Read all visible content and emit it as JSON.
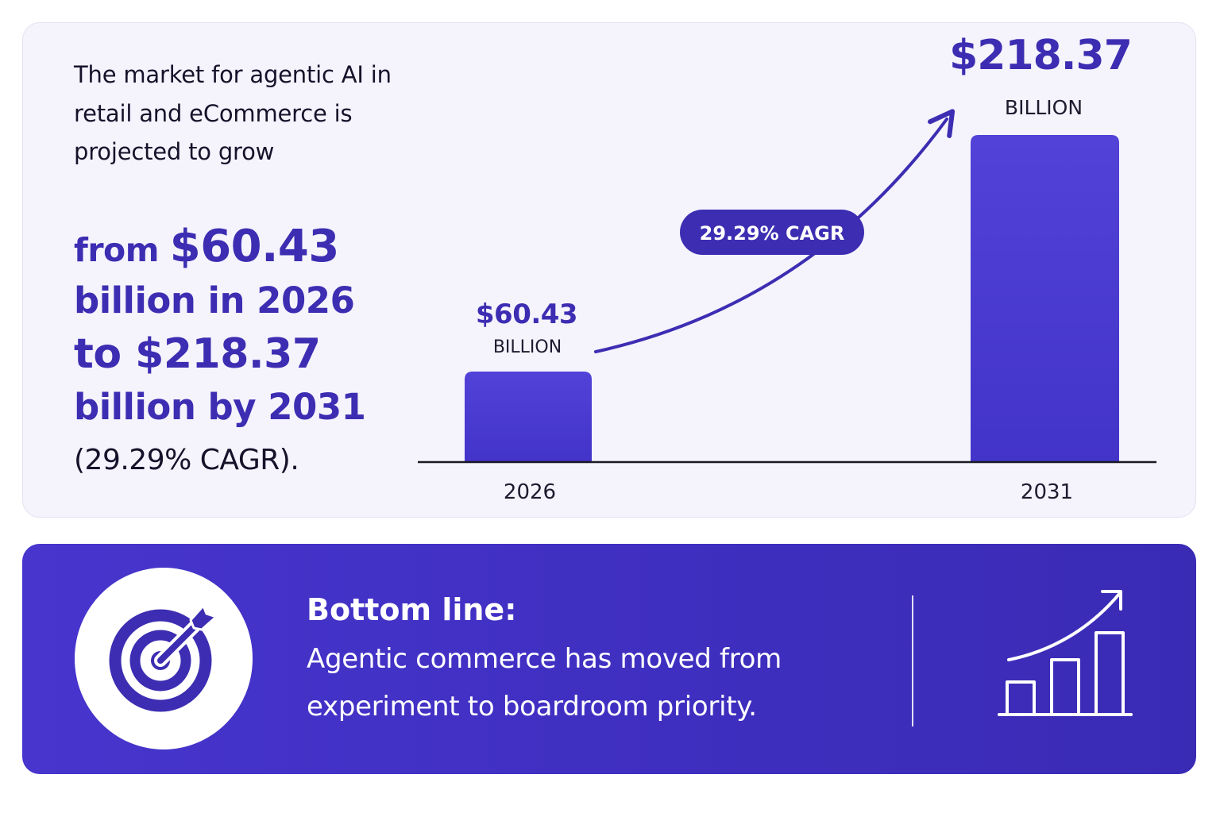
{
  "intro_text": "The market for agentic AI in retail and eCommerce is projected to grow",
  "headline": {
    "from": "from",
    "from_value": "$60.43",
    "line2": "billion in 2026",
    "line3": "to $218.37",
    "line4": "billion by 2031",
    "tail": "(29.29% CAGR)."
  },
  "chart_data": {
    "type": "bar",
    "categories": [
      "2026",
      "2031"
    ],
    "values": [
      60.43,
      218.37
    ],
    "value_labels": [
      "$60.43",
      "$218.37"
    ],
    "unit_label": "BILLION",
    "annotation": "29.29% CAGR",
    "title": "",
    "xlabel": "",
    "ylabel": "",
    "grid": false,
    "colors": {
      "bar": "#4a3bd2",
      "label": "#3c2db2",
      "axis": "#1a1a24"
    }
  },
  "bottom": {
    "title": "Bottom line:",
    "text": "Agentic commerce has moved from experiment to boardroom priority."
  },
  "icons": {
    "left": "target-icon",
    "right": "growth-chart-icon"
  },
  "colors": {
    "accent": "#3c2db2",
    "banner": "#4133c4",
    "card_bg": "#f5f3fc"
  }
}
